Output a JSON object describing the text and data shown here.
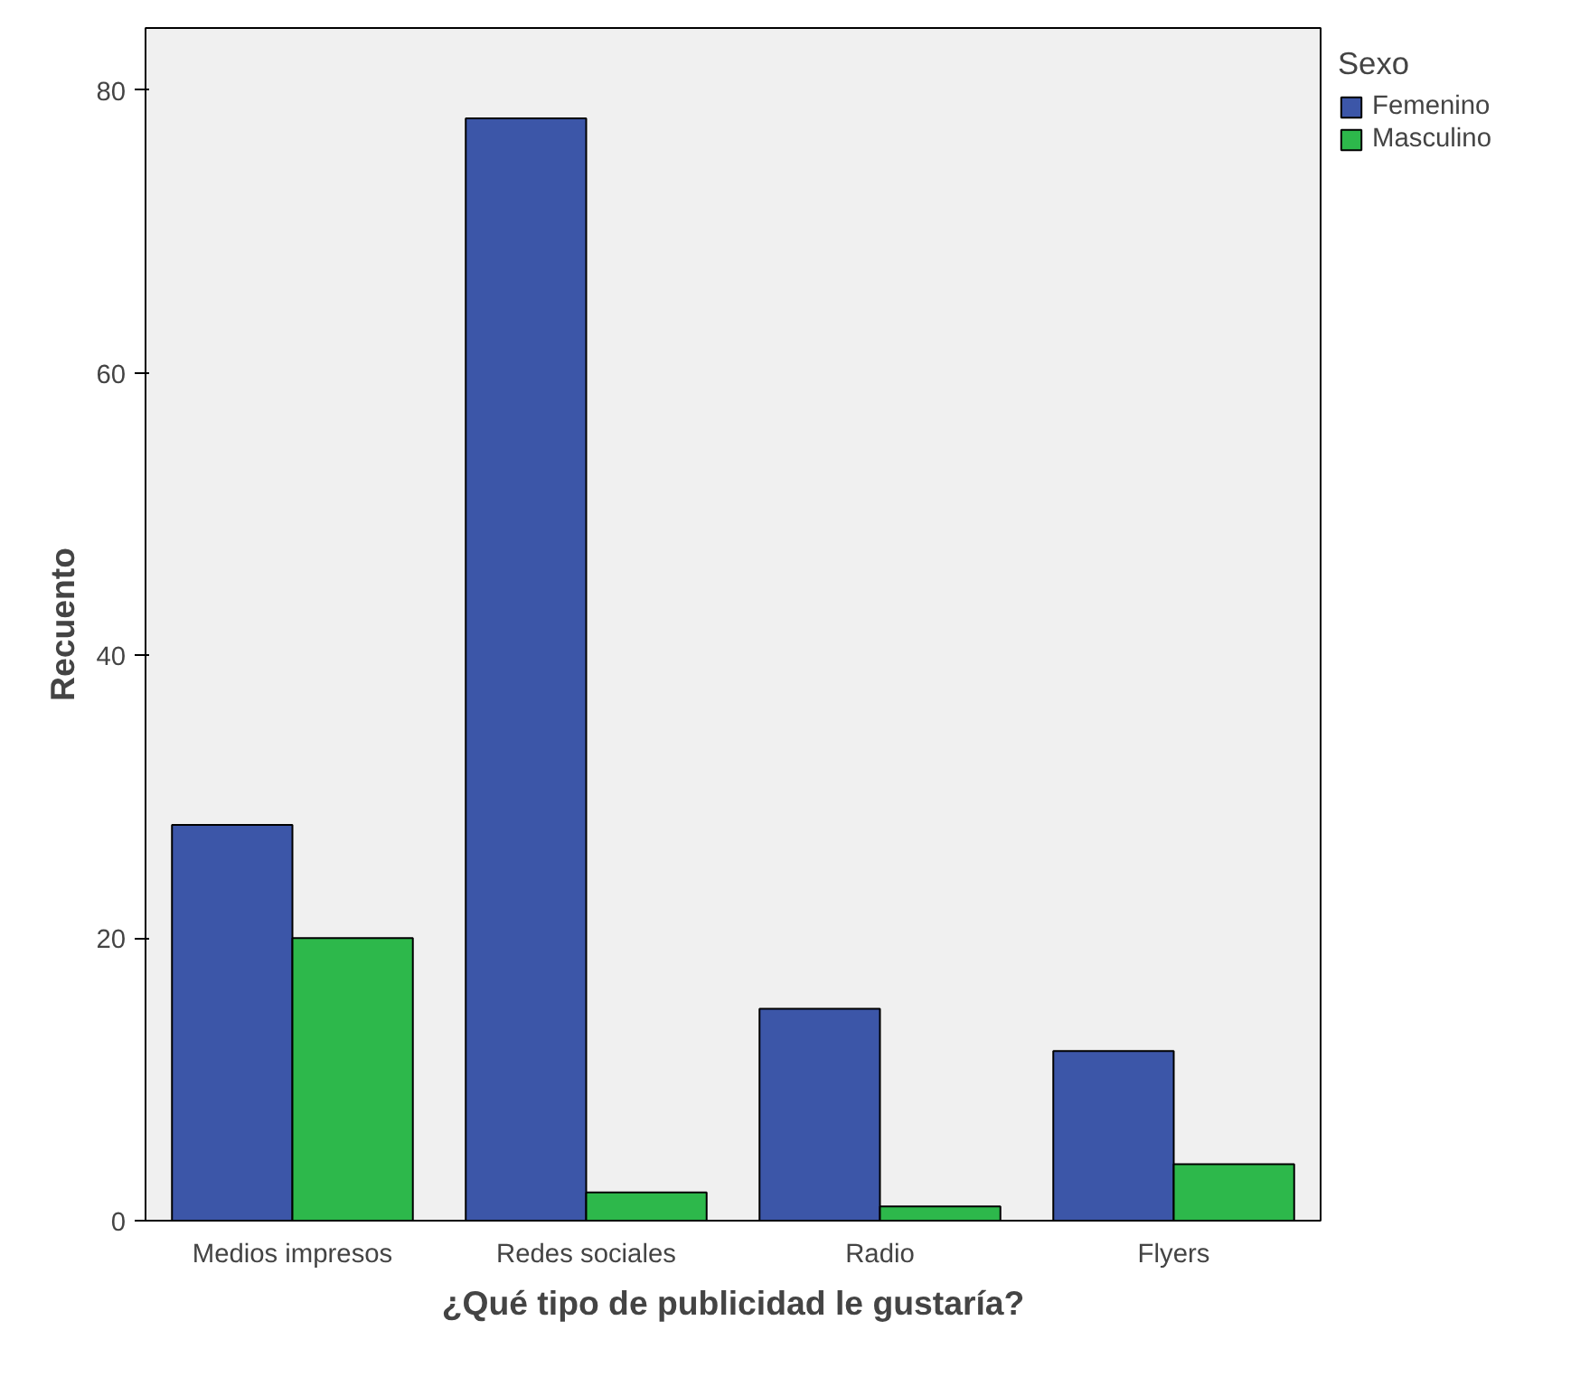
{
  "chart_data": {
    "type": "bar",
    "xlabel": "¿Qué tipo de publicidad le gustaría?",
    "ylabel": "Recuento",
    "legend_title": "Sexo",
    "categories": [
      "Medios impresos",
      "Redes sociales",
      "Radio",
      "Flyers"
    ],
    "series": [
      {
        "name": "Femenino",
        "color": "#3c56a8",
        "values": [
          28,
          78,
          15,
          12
        ]
      },
      {
        "name": "Masculino",
        "color": "#2db84b",
        "values": [
          20,
          2,
          1,
          4
        ]
      }
    ],
    "ylim": [
      0,
      84.4
    ],
    "yticks": [
      0,
      20,
      40,
      60,
      80
    ],
    "grid": false,
    "legend": "top right"
  }
}
